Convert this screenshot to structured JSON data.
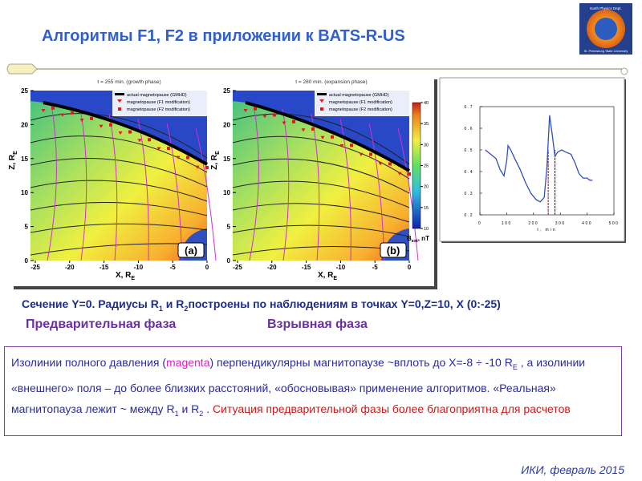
{
  "header": {
    "title": "Алгоритмы F1, F2 в приложении к BATS-R-US",
    "logo_text": [
      "Earth Physics Dept.",
      "St. Petersburg State University"
    ]
  },
  "figure": {
    "panels": [
      {
        "title": "t = 255 min. (growth phase)",
        "label": "(a)"
      },
      {
        "title": "t = 280 min. (expansion phase)",
        "label": "(b)"
      }
    ],
    "legend": [
      "actual magnetopause (GMHD)",
      "magnetopause (F1 modification)",
      "magnetopause (F2 modification)"
    ],
    "y_label": [
      "Z, R",
      "E"
    ],
    "x_label": [
      "X, R",
      "E"
    ],
    "xlim": [
      -25,
      0
    ],
    "ylim": [
      0,
      25
    ],
    "xticks": [
      -25,
      -20,
      -15,
      -10,
      -5,
      0
    ],
    "yticks": [
      0,
      5,
      10,
      15,
      20,
      25
    ],
    "colorbar": {
      "lim": [
        10,
        40
      ],
      "ticks": [
        10,
        15,
        20,
        25,
        30,
        35,
        40
      ],
      "label": [
        "B",
        "ext",
        ", nT"
      ]
    }
  },
  "inset_chart": {
    "x_label": "t, min",
    "xlim": [
      0,
      500
    ],
    "ylim": [
      0.2,
      0.7
    ],
    "xticks": [
      0,
      100,
      200,
      300,
      400,
      500
    ],
    "yticks": [
      0.2,
      0.3,
      0.4,
      0.5,
      0.6,
      0.7
    ],
    "series": [
      {
        "color": "#3050c0",
        "x": [
          20,
          40,
          60,
          75,
          90,
          100,
          105,
          115,
          130,
          150,
          170,
          190,
          210,
          225,
          240,
          250,
          260,
          270,
          280,
          290,
          305,
          320,
          340,
          355,
          370,
          385,
          400,
          410,
          420
        ],
        "values": [
          0.5,
          0.48,
          0.46,
          0.41,
          0.38,
          0.45,
          0.52,
          0.5,
          0.46,
          0.41,
          0.35,
          0.3,
          0.27,
          0.26,
          0.28,
          0.42,
          0.66,
          0.57,
          0.47,
          0.49,
          0.5,
          0.49,
          0.48,
          0.44,
          0.39,
          0.37,
          0.37,
          0.36,
          0.36
        ]
      }
    ],
    "markers": [
      {
        "x": 255,
        "color": "#e02020"
      },
      {
        "x": 280,
        "color": "#801818"
      }
    ]
  },
  "caption": [
    "Сечение Y=0. Радиусы R",
    "1",
    " и  R",
    "2",
    "построены по наблюдениям в точках  Y=0,Z=10, X (0:-25)"
  ],
  "phases": [
    "Предварительная фаза",
    "Взрывная фаза"
  ],
  "box": [
    "Изолинии полного давления (",
    "magenta",
    ") перпендикулярны  магнитопаузе ~вплоть до X=-8 ÷ -10 R",
    "E",
    " ,  а изолинии «внешнего» поля – до более близких расстояний, «обосновывая» применение алгоритмов. «Реальная» магнитопауза лежит ~ между  R",
    "1",
    " и  R",
    "2",
    " .  ",
    "Ситуация предварительной фазы более благоприятна для расчетов"
  ],
  "footer": "ИКИ, февраль 2015"
}
